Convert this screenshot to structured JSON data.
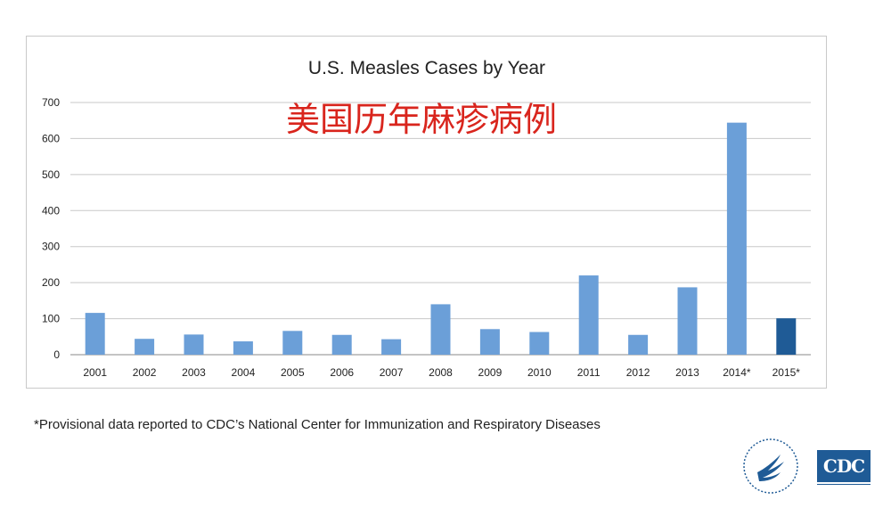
{
  "chart_data": {
    "type": "bar",
    "title": "U.S. Measles Cases by Year",
    "overlay_title": "美国历年麻疹病例",
    "categories": [
      "2001",
      "2002",
      "2003",
      "2004",
      "2005",
      "2006",
      "2007",
      "2008",
      "2009",
      "2010",
      "2011",
      "2012",
      "2013",
      "2014*",
      "2015*"
    ],
    "values": [
      116,
      44,
      56,
      37,
      66,
      55,
      43,
      140,
      71,
      63,
      220,
      55,
      187,
      644,
      101
    ],
    "ylim": [
      0,
      700
    ],
    "yticks": [
      0,
      100,
      200,
      300,
      400,
      500,
      600,
      700
    ],
    "grid": true,
    "legend": "none",
    "colors": {
      "bar": "#6b9fd8",
      "highlight_bar": "#1f5b96",
      "grid": "#c8c8c8"
    },
    "highlight_category": "2015*"
  },
  "footnote": "*Provisional data reported to CDC’s National Center for Immunization and Respiratory Diseases",
  "logos": {
    "hhs_seal_icon": "hhs-eagle-seal",
    "cdc_logo_text": "CDC"
  }
}
